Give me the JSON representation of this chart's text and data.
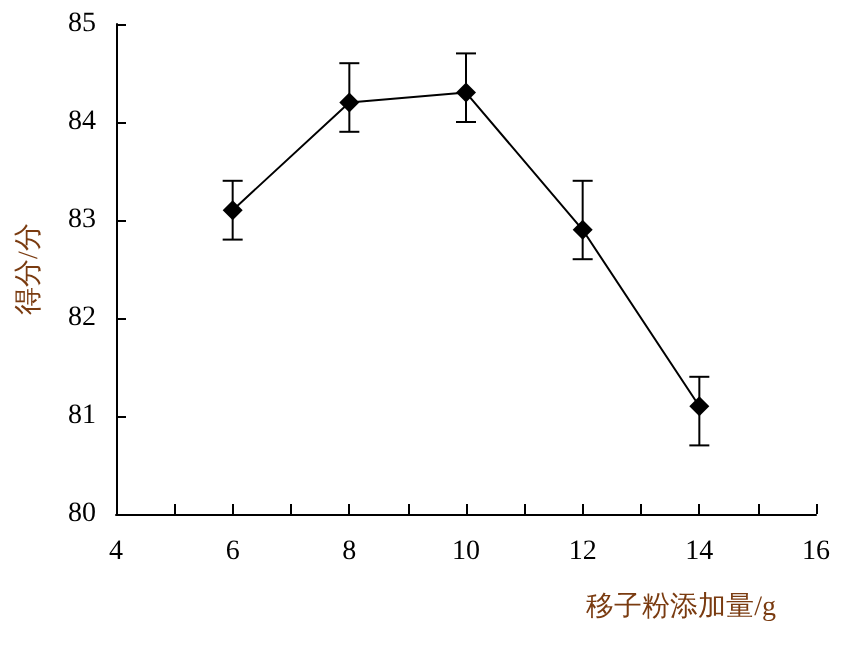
{
  "chart_data": {
    "type": "line",
    "xlabel": "移子粉添加量/g",
    "ylabel": "得分/分",
    "x": [
      6,
      8,
      10,
      12,
      14
    ],
    "series": [
      {
        "color": "#000000",
        "values": [
          83.1,
          84.2,
          84.3,
          82.9,
          81.1
        ],
        "errors": [
          [
            82.8,
            83.4
          ],
          [
            83.9,
            84.6
          ],
          [
            84.0,
            84.7
          ],
          [
            82.6,
            83.4
          ],
          [
            80.7,
            81.4
          ]
        ]
      }
    ],
    "xlim": [
      4,
      16
    ],
    "xticks": [
      4,
      {
        "value": 5,
        "label": null
      },
      6,
      {
        "value": 7,
        "label": null
      },
      8,
      {
        "value": 9,
        "label": null
      },
      10,
      {
        "value": 11,
        "label": null
      },
      12,
      {
        "value": 13,
        "label": null
      },
      14,
      {
        "value": 15,
        "label": null
      },
      16
    ],
    "ylim": [
      80,
      85
    ],
    "yticks": [
      80,
      81,
      82,
      83,
      84,
      85
    ],
    "grid": false,
    "marker": "diamond",
    "line_style": "solid"
  }
}
